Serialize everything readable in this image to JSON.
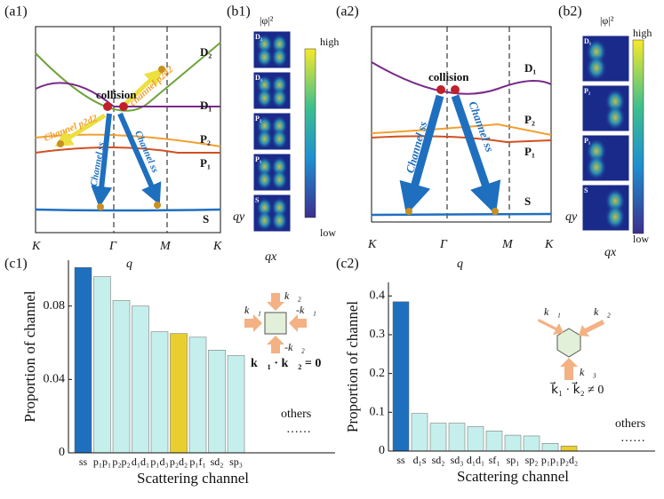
{
  "panels": {
    "a1": {
      "label": "(a1)",
      "xticks": [
        "K",
        "Γ",
        "M",
        "K"
      ],
      "xlabel": "q",
      "bands": [
        "D₂",
        "D₁",
        "P₂",
        "P₁",
        "S"
      ],
      "collision": "collision",
      "channels": [
        "Channel p2d2",
        "channel p2d2",
        "Channel ss",
        "Channel ss"
      ]
    },
    "b1": {
      "label": "(b1)",
      "title": "|φ|²",
      "tiles": [
        "D₂",
        "D₁",
        "P₂",
        "P₁",
        "S"
      ],
      "high": "high",
      "low": "low",
      "qy": "qy",
      "qx": "qx"
    },
    "a2": {
      "label": "(a2)",
      "xticks": [
        "K",
        "Γ",
        "M",
        "K"
      ],
      "xlabel": "q",
      "bands": [
        "D₁",
        "P₂",
        "P₁",
        "S"
      ],
      "collision": "collision",
      "channels": [
        "Channel ss",
        "Channel ss"
      ]
    },
    "b2": {
      "label": "(b2)",
      "title": "|φ|²",
      "tiles": [
        "D₁",
        "P₂",
        "P₁",
        "S"
      ],
      "high": "high",
      "low": "low",
      "qy": "qy",
      "qx": "qx"
    },
    "c1": {
      "label": "(c1)",
      "others": "others",
      "dots": "……",
      "inset": [
        "k⃗₂",
        "k⃗₁",
        "-k⃗₁",
        "-k⃗₂"
      ],
      "formula": "k⃗₁ · k⃗₂ = 0"
    },
    "c2": {
      "label": "(c2)",
      "others": "others",
      "dots": "……",
      "inset": [
        "k⃗₁",
        "k⃗₂",
        "k⃗₃"
      ],
      "formula": "k⃗₁ · k⃗₂ ≠ 0"
    }
  },
  "chart_data": [
    {
      "type": "bar",
      "ylabel": "Proportion of channel",
      "xlabel": "Scattering channel",
      "categories": [
        "ss",
        "p₁p₁",
        "p₂p₂",
        "d₁d₁",
        "p₁d₃",
        "p₂d₂",
        "p₁f₁",
        "sd₂",
        "sp₃"
      ],
      "values": [
        0.101,
        0.096,
        0.083,
        0.08,
        0.066,
        0.065,
        0.063,
        0.056,
        0.053
      ],
      "colors": [
        "#1f6fbf",
        "#c5efec",
        "#c5efec",
        "#c5efec",
        "#c5efec",
        "#e8cf2f",
        "#c5efec",
        "#c5efec",
        "#c5efec"
      ],
      "ylim": [
        0,
        0.105
      ],
      "yticks": [
        0,
        0.04,
        0.08
      ]
    },
    {
      "type": "bar",
      "ylabel": "Proportion of channel",
      "xlabel": "Scattering channel",
      "categories": [
        "ss",
        "d₁s",
        "sd₂",
        "sd₃",
        "d₁d₁",
        "sf₁",
        "sp₁",
        "sp₂",
        "p₁p₁",
        "p₂d₂"
      ],
      "values": [
        0.385,
        0.097,
        0.072,
        0.072,
        0.063,
        0.052,
        0.041,
        0.039,
        0.02,
        0.013
      ],
      "colors": [
        "#1f6fbf",
        "#c5efec",
        "#c5efec",
        "#c5efec",
        "#c5efec",
        "#c5efec",
        "#c5efec",
        "#c5efec",
        "#c5efec",
        "#e8cf2f"
      ],
      "ylim": [
        0,
        0.435
      ],
      "yticks": [
        0,
        0.1,
        0.2,
        0.3,
        0.4
      ]
    }
  ]
}
